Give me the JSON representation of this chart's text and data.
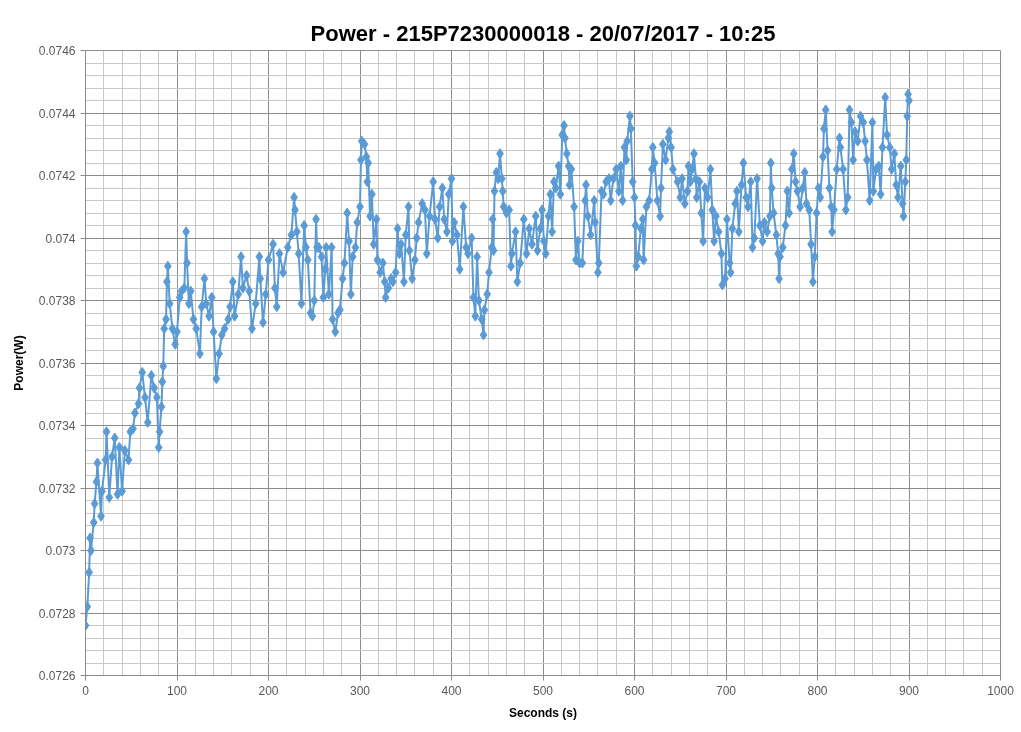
{
  "chart_data": {
    "type": "line",
    "title": "Power - 215P7230000018 - 20/07/2017 - 10:25",
    "xlabel": "Seconds (s)",
    "ylabel": "Power(W)",
    "x": [
      0,
      2,
      4,
      5,
      6,
      9,
      10,
      12,
      13,
      17,
      18,
      22,
      23,
      26,
      29,
      32,
      35,
      37,
      40,
      43,
      47,
      49,
      52,
      54,
      58,
      59,
      62,
      65,
      68,
      72,
      75,
      78,
      80,
      81,
      83,
      84,
      85,
      86,
      88,
      89,
      90,
      92,
      95,
      98,
      100,
      103,
      105,
      108,
      110,
      111,
      113,
      115,
      118,
      121,
      125,
      127,
      130,
      132,
      135,
      138,
      140,
      143,
      146,
      149,
      152,
      156,
      158,
      161,
      163,
      167,
      170,
      172,
      176,
      179,
      182,
      186,
      190,
      191,
      194,
      197,
      200,
      205,
      207,
      209,
      212,
      216,
      221,
      225,
      228,
      229,
      231,
      233,
      236,
      239,
      241,
      243,
      246,
      248,
      250,
      252,
      253,
      255,
      258,
      260,
      262,
      263,
      266,
      269,
      270,
      273,
      276,
      278,
      281,
      283,
      286,
      288,
      290,
      292,
      295,
      297,
      300,
      301,
      302,
      305,
      307,
      308,
      309,
      311,
      313,
      315,
      318,
      319,
      322,
      325,
      327,
      328,
      331,
      334,
      336,
      339,
      341,
      343,
      345,
      348,
      350,
      353,
      354,
      357,
      360,
      362,
      364,
      368,
      371,
      373,
      376,
      380,
      382,
      385,
      387,
      390,
      392,
      395,
      397,
      400,
      401,
      403,
      406,
      409,
      413,
      416,
      418,
      422,
      424,
      426,
      428,
      430,
      433,
      435,
      436,
      439,
      441,
      444,
      445,
      446,
      447,
      449,
      451,
      453,
      455,
      456,
      457,
      460,
      463,
      465,
      466,
      470,
      472,
      475,
      479,
      482,
      485,
      488,
      492,
      494,
      497,
      499,
      501,
      503,
      506,
      508,
      510,
      512,
      514,
      517,
      519,
      521,
      523,
      524,
      526,
      528,
      529,
      531,
      534,
      536,
      538,
      540,
      543,
      546,
      547,
      549,
      552,
      556,
      557,
      560,
      561,
      564,
      566,
      569,
      572,
      574,
      577,
      580,
      583,
      585,
      587,
      589,
      591,
      592,
      595,
      596,
      598,
      600,
      601,
      602,
      604,
      607,
      609,
      610,
      613,
      616,
      619,
      620,
      622,
      625,
      628,
      629,
      631,
      634,
      637,
      638,
      640,
      642,
      647,
      650,
      652,
      655,
      658,
      659,
      661,
      663,
      665,
      667,
      668,
      671,
      673,
      675,
      677,
      680,
      683,
      685,
      687,
      689,
      692,
      695,
      696,
      699,
      701,
      704,
      705,
      707,
      710,
      712,
      714,
      717,
      719,
      722,
      724,
      727,
      729,
      731,
      734,
      737,
      740,
      742,
      745,
      748,
      749,
      750,
      752,
      755,
      757,
      758,
      759,
      762,
      765,
      767,
      769,
      772,
      774,
      776,
      778,
      781,
      784,
      786,
      788,
      791,
      793,
      795,
      797,
      799,
      801,
      803,
      806,
      807,
      809,
      811,
      813,
      815,
      816,
      818,
      821,
      824,
      825,
      828,
      831,
      833,
      835,
      837,
      839,
      841,
      844,
      847,
      850,
      852,
      854,
      857,
      860,
      861,
      864,
      867,
      869,
      871,
      874,
      876,
      879,
      881,
      884,
      886,
      888,
      891,
      893,
      894,
      896,
      897,
      898,
      899,
      900
    ],
    "series": [
      {
        "color": "#5b9bd5",
        "values": [
          0.07276,
          0.07282,
          0.07293,
          0.07304,
          0.073,
          0.07309,
          0.07315,
          0.07322,
          0.07328,
          0.07311,
          0.07319,
          0.07329,
          0.07338,
          0.07317,
          0.0733,
          0.07336,
          0.07318,
          0.07333,
          0.07319,
          0.07332,
          0.07329,
          0.07338,
          0.07339,
          0.07344,
          0.07347,
          0.07352,
          0.07357,
          0.07349,
          0.07341,
          0.07356,
          0.07352,
          0.07349,
          0.07333,
          0.07338,
          0.07346,
          0.07354,
          0.07359,
          0.07371,
          0.07374,
          0.07386,
          0.07391,
          0.07379,
          0.07371,
          0.07366,
          0.0737,
          0.07381,
          0.07383,
          0.07384,
          0.07402,
          0.07392,
          0.07379,
          0.07383,
          0.07374,
          0.07371,
          0.07363,
          0.07378,
          0.07387,
          0.07379,
          0.07375,
          0.07381,
          0.0737,
          0.07355,
          0.07363,
          0.07369,
          0.07371,
          0.07374,
          0.07378,
          0.07386,
          0.07375,
          0.07382,
          0.07394,
          0.07384,
          0.07388,
          0.07383,
          0.07371,
          0.07379,
          0.07394,
          0.07387,
          0.07373,
          0.07382,
          0.07393,
          0.07398,
          0.07384,
          0.07378,
          0.07395,
          0.07389,
          0.07397,
          0.07401,
          0.07413,
          0.07409,
          0.07402,
          0.07395,
          0.07379,
          0.07404,
          0.07397,
          0.07393,
          0.07376,
          0.07375,
          0.0738,
          0.07406,
          0.07397,
          0.07397,
          0.07394,
          0.07381,
          0.0739,
          0.07397,
          0.07382,
          0.07397,
          0.07374,
          0.0737,
          0.07376,
          0.07377,
          0.07387,
          0.07392,
          0.07408,
          0.07399,
          0.07382,
          0.07394,
          0.07397,
          0.07405,
          0.0741,
          0.07425,
          0.07431,
          0.0743,
          0.07426,
          0.07418,
          0.07424,
          0.07407,
          0.07414,
          0.07398,
          0.07406,
          0.07393,
          0.07389,
          0.07392,
          0.07386,
          0.07381,
          0.07384,
          0.07387,
          0.07386,
          0.07389,
          0.07403,
          0.07395,
          0.07398,
          0.07386,
          0.07401,
          0.0741,
          0.07396,
          0.07387,
          0.07393,
          0.074,
          0.07405,
          0.07411,
          0.07409,
          0.07395,
          0.07407,
          0.07418,
          0.07406,
          0.074,
          0.0741,
          0.07416,
          0.07406,
          0.07402,
          0.07414,
          0.07419,
          0.07399,
          0.07405,
          0.07401,
          0.0739,
          0.0741,
          0.07397,
          0.07395,
          0.074,
          0.07381,
          0.07375,
          0.07394,
          0.0738,
          0.07374,
          0.07369,
          0.07377,
          0.07382,
          0.07389,
          0.07397,
          0.07406,
          0.07396,
          0.07415,
          0.07421,
          0.07419,
          0.07427,
          0.07419,
          0.07415,
          0.0741,
          0.07408,
          0.07409,
          0.07391,
          0.07395,
          0.07402,
          0.07386,
          0.07392,
          0.07406,
          0.07395,
          0.07403,
          0.07398,
          0.07407,
          0.07396,
          0.07403,
          0.07409,
          0.07399,
          0.07395,
          0.07407,
          0.07414,
          0.07402,
          0.07418,
          0.07416,
          0.07423,
          0.07414,
          0.07433,
          0.07436,
          0.07432,
          0.07427,
          0.07423,
          0.07417,
          0.07422,
          0.0741,
          0.07393,
          0.07399,
          0.07392,
          0.07392,
          0.07412,
          0.07417,
          0.07407,
          0.07401,
          0.07412,
          0.07405,
          0.07389,
          0.07392,
          0.07415,
          0.07414,
          0.07418,
          0.07419,
          0.07412,
          0.07419,
          0.07422,
          0.07415,
          0.07423,
          0.07412,
          0.07429,
          0.07425,
          0.07431,
          0.07439,
          0.07435,
          0.07418,
          0.07413,
          0.07404,
          0.07391,
          0.07394,
          0.07403,
          0.07406,
          0.07393,
          0.0741,
          0.07412,
          0.07422,
          0.07429,
          0.07424,
          0.07412,
          0.07407,
          0.07416,
          0.0743,
          0.07425,
          0.07432,
          0.07434,
          0.07429,
          0.07422,
          0.07418,
          0.07413,
          0.07419,
          0.07411,
          0.07415,
          0.07423,
          0.07418,
          0.07422,
          0.07427,
          0.07419,
          0.07413,
          0.07418,
          0.07408,
          0.07399,
          0.07416,
          0.07413,
          0.07422,
          0.07409,
          0.07399,
          0.07407,
          0.07402,
          0.07395,
          0.07385,
          0.07387,
          0.07406,
          0.07392,
          0.07389,
          0.07403,
          0.07411,
          0.07415,
          0.07402,
          0.07417,
          0.07424,
          0.07413,
          0.0741,
          0.07418,
          0.07397,
          0.074,
          0.07419,
          0.07404,
          0.07399,
          0.07405,
          0.07402,
          0.07407,
          0.07424,
          0.07416,
          0.07408,
          0.07401,
          0.07395,
          0.07387,
          0.07394,
          0.07397,
          0.07404,
          0.07415,
          0.07408,
          0.07422,
          0.07427,
          0.07418,
          0.07415,
          0.0741,
          0.07416,
          0.07421,
          0.07411,
          0.07409,
          0.07398,
          0.07386,
          0.07394,
          0.07408,
          0.07416,
          0.07413,
          0.07426,
          0.07435,
          0.07441,
          0.07428,
          0.07416,
          0.0741,
          0.07402,
          0.07409,
          0.07422,
          0.07432,
          0.07429,
          0.07422,
          0.07409,
          0.07413,
          0.07441,
          0.07437,
          0.07425,
          0.07434,
          0.07431,
          0.07439,
          0.07437,
          0.07431,
          0.07425,
          0.07412,
          0.07437,
          0.07415,
          0.07422,
          0.07423,
          0.07414,
          0.07429,
          0.07445,
          0.07433,
          0.07429,
          0.07422,
          0.07427,
          0.07417,
          0.07413,
          0.07423,
          0.07411,
          0.07407,
          0.07418,
          0.07425,
          0.07439,
          0.07446,
          0.07444
        ]
      }
    ],
    "xlim": [
      0,
      1000
    ],
    "ylim": [
      0.0726,
      0.0746
    ],
    "xticks": [
      0,
      100,
      200,
      300,
      400,
      500,
      600,
      700,
      800,
      900,
      1000
    ],
    "yticks": [
      0.0726,
      0.0728,
      0.073,
      0.0732,
      0.0734,
      0.0736,
      0.0738,
      0.074,
      0.0742,
      0.0744,
      0.0746
    ],
    "grid": true,
    "marker": "diamond",
    "line_style": "solid"
  }
}
